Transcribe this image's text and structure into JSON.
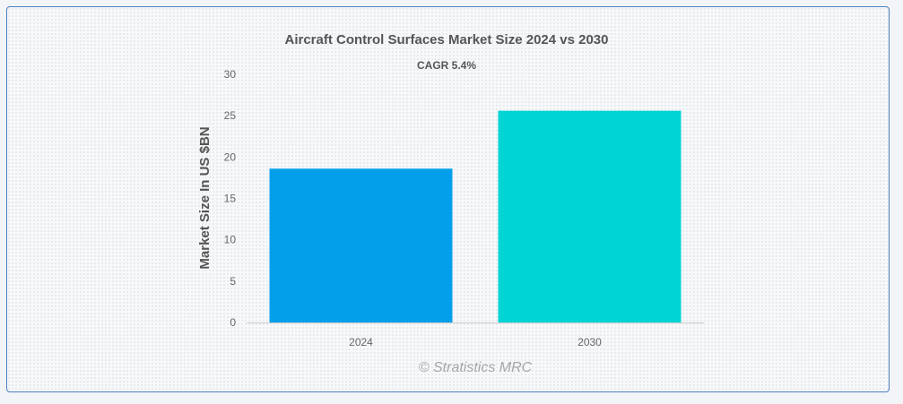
{
  "chart_data": {
    "type": "bar",
    "title": "Aircraft Control Surfaces Market Size 2024 vs 2030",
    "subtitle": "CAGR 5.4%",
    "xlabel": "",
    "ylabel": "Market Size In US $BN",
    "categories": [
      "2024",
      "2030"
    ],
    "values": [
      18.6,
      25.6
    ],
    "colors": [
      "#049fea",
      "#00d4d4"
    ],
    "ylim": [
      0,
      30
    ],
    "yticks": [
      0,
      5,
      10,
      15,
      20,
      25,
      30
    ],
    "grid": false,
    "legend": "none"
  },
  "watermark": "© Stratistics MRC"
}
